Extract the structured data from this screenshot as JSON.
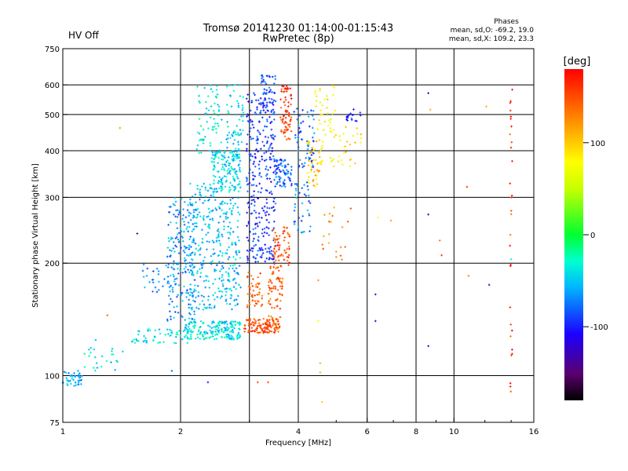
{
  "chart_data": {
    "type": "scatter",
    "title_line1": "Tromsø 20141230 01:14:00-01:15:43",
    "title_line2": "RwPretec (8p)",
    "status_label": "HV Off",
    "status_color": "#e00000",
    "phases": {
      "title": "Phases",
      "line_o": "mean, sd,O: -69.2, 19.0",
      "line_x": "mean, sd,X: 109.2, 23.3"
    },
    "xlabel": "Frequency [MHz]",
    "ylabel": "Stationary phase Virtual Height [km]",
    "x_scale": "log",
    "y_scale": "log",
    "xlim": [
      1,
      16
    ],
    "ylim": [
      75,
      750
    ],
    "x_ticks": [
      {
        "value": 1,
        "label": "1"
      },
      {
        "value": 2,
        "label": "2"
      },
      {
        "value": 4,
        "label": "4"
      },
      {
        "value": 6,
        "label": "6"
      },
      {
        "value": 8,
        "label": "8"
      },
      {
        "value": 10,
        "label": "10"
      },
      {
        "value": 16,
        "label": "16"
      }
    ],
    "x_grid": [
      2,
      3,
      4,
      6,
      8,
      10
    ],
    "y_ticks": [
      {
        "value": 75,
        "label": "75"
      },
      {
        "value": 100,
        "label": "100"
      },
      {
        "value": 200,
        "label": "200"
      },
      {
        "value": 300,
        "label": "300"
      },
      {
        "value": 400,
        "label": "400"
      },
      {
        "value": 500,
        "label": "500"
      },
      {
        "value": 600,
        "label": "600"
      },
      {
        "value": 750,
        "label": "750"
      }
    ],
    "y_grid": [
      100,
      200,
      300,
      400,
      500,
      600
    ],
    "grid": true,
    "colorbar": {
      "label": "[deg]",
      "range": [
        -180,
        180
      ],
      "ticks": [
        {
          "value": 100,
          "label": "100"
        },
        {
          "value": 0,
          "label": "0"
        },
        {
          "value": -100,
          "label": "-100"
        }
      ]
    },
    "clusters": [
      {
        "f": [
          1.0,
          1.12
        ],
        "h": [
          93,
          103
        ],
        "n": 45,
        "phase": -60
      },
      {
        "f": [
          1.1,
          1.45
        ],
        "h": [
          103,
          125
        ],
        "n": 25,
        "phase": -45
      },
      {
        "f": [
          1.5,
          2.1
        ],
        "h": [
          122,
          134
        ],
        "n": 60,
        "phase": -40
      },
      {
        "f": [
          1.6,
          1.95
        ],
        "h": [
          165,
          200
        ],
        "n": 30,
        "phase": -70
      },
      {
        "f": [
          1.85,
          2.2
        ],
        "h": [
          140,
          300
        ],
        "n": 200,
        "phase": -65
      },
      {
        "f": [
          2.05,
          2.5
        ],
        "h": [
          125,
          140
        ],
        "n": 90,
        "phase": -40
      },
      {
        "f": [
          2.1,
          2.5
        ],
        "h": [
          150,
          330
        ],
        "n": 180,
        "phase": -55
      },
      {
        "f": [
          2.2,
          2.55
        ],
        "h": [
          380,
          600
        ],
        "n": 70,
        "phase": -35
      },
      {
        "f": [
          2.4,
          2.85
        ],
        "h": [
          310,
          400
        ],
        "n": 160,
        "phase": -45
      },
      {
        "f": [
          2.45,
          2.85
        ],
        "h": [
          125,
          140
        ],
        "n": 100,
        "phase": -40
      },
      {
        "f": [
          2.5,
          2.85
        ],
        "h": [
          150,
          300
        ],
        "n": 150,
        "phase": -55
      },
      {
        "f": [
          2.6,
          2.9
        ],
        "h": [
          400,
          600
        ],
        "n": 60,
        "phase": -45
      },
      {
        "f": [
          2.9,
          3.35
        ],
        "h": [
          130,
          142
        ],
        "n": 70,
        "phase": 150
      },
      {
        "f": [
          2.95,
          3.25
        ],
        "h": [
          150,
          190
        ],
        "n": 45,
        "phase": 145
      },
      {
        "f": [
          2.95,
          3.5
        ],
        "h": [
          200,
          580
        ],
        "n": 300,
        "phase": -95
      },
      {
        "f": [
          3.2,
          3.5
        ],
        "h": [
          500,
          640
        ],
        "n": 50,
        "phase": -90
      },
      {
        "f": [
          3.3,
          3.6
        ],
        "h": [
          130,
          145
        ],
        "n": 60,
        "phase": 145
      },
      {
        "f": [
          3.35,
          3.65
        ],
        "h": [
          150,
          200
        ],
        "n": 60,
        "phase": 145
      },
      {
        "f": [
          3.45,
          3.8
        ],
        "h": [
          195,
          250
        ],
        "n": 60,
        "phase": 150
      },
      {
        "f": [
          3.5,
          3.85
        ],
        "h": [
          320,
          380
        ],
        "n": 70,
        "phase": -80
      },
      {
        "f": [
          3.6,
          3.85
        ],
        "h": [
          420,
          600
        ],
        "n": 70,
        "phase": 155
      },
      {
        "f": [
          3.9,
          4.3
        ],
        "h": [
          240,
          330
        ],
        "n": 40,
        "phase": -70
      },
      {
        "f": [
          3.9,
          4.4
        ],
        "h": [
          360,
          520
        ],
        "n": 60,
        "phase": -80
      },
      {
        "f": [
          4.2,
          4.6
        ],
        "h": [
          320,
          430
        ],
        "n": 45,
        "phase": 100
      },
      {
        "f": [
          4.4,
          5.0
        ],
        "h": [
          360,
          600
        ],
        "n": 50,
        "phase": 80
      },
      {
        "f": [
          5.0,
          5.8
        ],
        "h": [
          360,
          480
        ],
        "n": 25,
        "phase": 90
      },
      {
        "f": [
          5.3,
          5.8
        ],
        "h": [
          480,
          520
        ],
        "n": 18,
        "phase": -100
      },
      {
        "f": [
          4.6,
          5.5
        ],
        "h": [
          200,
          300
        ],
        "n": 20,
        "phase": 130
      },
      {
        "f": [
          13.9,
          14.1
        ],
        "h": [
          85,
          620
        ],
        "n": 30,
        "phase": 160
      }
    ],
    "scattered_points": [
      {
        "f": 1.4,
        "h": 460,
        "phase": 120
      },
      {
        "f": 1.55,
        "h": 240,
        "phase": -140
      },
      {
        "f": 1.3,
        "h": 145,
        "phase": 140
      },
      {
        "f": 1.9,
        "h": 103,
        "phase": -80
      },
      {
        "f": 2.35,
        "h": 96,
        "phase": -100
      },
      {
        "f": 3.15,
        "h": 96,
        "phase": 150
      },
      {
        "f": 3.35,
        "h": 96,
        "phase": 150
      },
      {
        "f": 4.55,
        "h": 102,
        "phase": 110
      },
      {
        "f": 4.55,
        "h": 108,
        "phase": 110
      },
      {
        "f": 4.6,
        "h": 85,
        "phase": 100
      },
      {
        "f": 4.5,
        "h": 140,
        "phase": 80
      },
      {
        "f": 4.5,
        "h": 180,
        "phase": 120
      },
      {
        "f": 6.3,
        "h": 165,
        "phase": -120
      },
      {
        "f": 6.3,
        "h": 140,
        "phase": -120
      },
      {
        "f": 6.4,
        "h": 265,
        "phase": 80
      },
      {
        "f": 6.9,
        "h": 260,
        "phase": 120
      },
      {
        "f": 8.6,
        "h": 570,
        "phase": -120
      },
      {
        "f": 8.6,
        "h": 270,
        "phase": -120
      },
      {
        "f": 8.6,
        "h": 120,
        "phase": -120
      },
      {
        "f": 8.7,
        "h": 515,
        "phase": 110
      },
      {
        "f": 9.2,
        "h": 230,
        "phase": 130
      },
      {
        "f": 9.3,
        "h": 210,
        "phase": 160
      },
      {
        "f": 10.8,
        "h": 320,
        "phase": 160
      },
      {
        "f": 10.9,
        "h": 185,
        "phase": 130
      },
      {
        "f": 12.1,
        "h": 525,
        "phase": 110
      },
      {
        "f": 12.3,
        "h": 175,
        "phase": -120
      },
      {
        "f": 14.0,
        "h": 205,
        "phase": -40
      }
    ]
  }
}
